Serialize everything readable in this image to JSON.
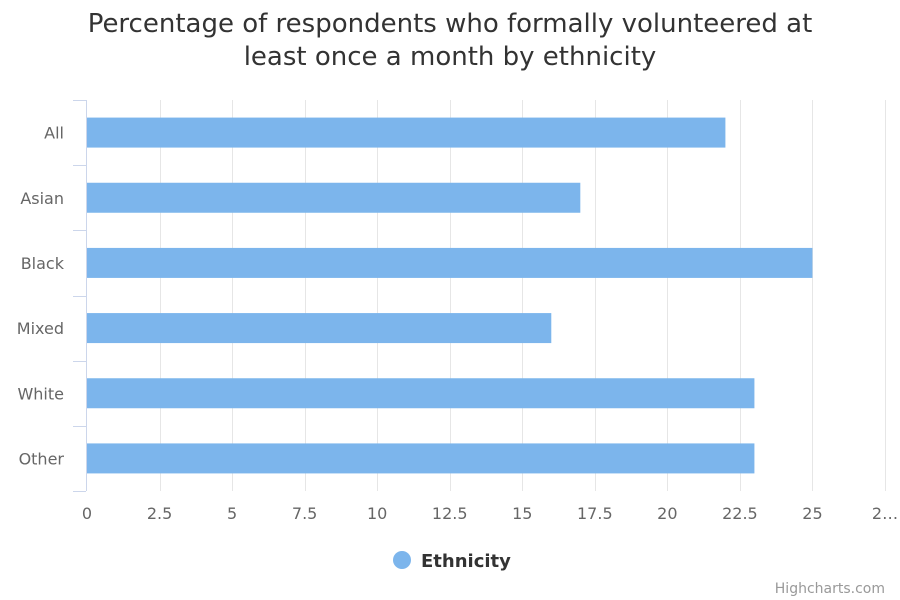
{
  "chart_data": {
    "type": "bar",
    "orientation": "horizontal",
    "title_lines": [
      "Percentage of respondents who formally volunteered at",
      "least once a month by ethnicity"
    ],
    "categories": [
      "All",
      "Asian",
      "Black",
      "Mixed",
      "White",
      "Other"
    ],
    "series": [
      {
        "name": "Ethnicity",
        "values": [
          22,
          17,
          25,
          16,
          23,
          23
        ],
        "color": "#7cb5ec"
      }
    ],
    "x_ticks": [
      "0",
      "2.5",
      "5",
      "7.5",
      "10",
      "12.5",
      "15",
      "17.5",
      "20",
      "22.5",
      "25",
      "2…"
    ],
    "xlim": [
      0,
      27.5
    ],
    "tick_step": 2.5,
    "grid": true,
    "legend_position": "bottom-center",
    "credits": "Highcharts.com"
  }
}
